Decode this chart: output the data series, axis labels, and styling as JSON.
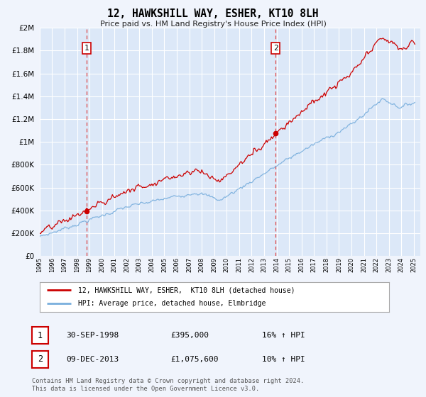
{
  "title": "12, HAWKSHILL WAY, ESHER, KT10 8LH",
  "subtitle": "Price paid vs. HM Land Registry's House Price Index (HPI)",
  "background_color": "#f0f4fc",
  "plot_bg_color": "#dce8f8",
  "grid_color": "#ffffff",
  "sale1_x": 1998.75,
  "sale1_y": 395000,
  "sale2_x": 2013.917,
  "sale2_y": 1075600,
  "red_line_color": "#cc0000",
  "blue_line_color": "#7aafdd",
  "sale_marker_color": "#cc0000",
  "dashed_line_color": "#dd4444",
  "annotation_box_color": "#ffffff",
  "annotation_border_color": "#cc0000",
  "ylim": [
    0,
    2000000
  ],
  "yticks": [
    0,
    200000,
    400000,
    600000,
    800000,
    1000000,
    1200000,
    1400000,
    1600000,
    1800000,
    2000000
  ],
  "xlim_start": 1995.0,
  "xlim_end": 2025.5,
  "legend_label_red": "12, HAWKSHILL WAY, ESHER,  KT10 8LH (detached house)",
  "legend_label_blue": "HPI: Average price, detached house, Elmbridge",
  "footer_text": "Contains HM Land Registry data © Crown copyright and database right 2024.\nThis data is licensed under the Open Government Licence v3.0.",
  "table_rows": [
    {
      "num": "1",
      "date": "30-SEP-1998",
      "price": "£395,000",
      "hpi": "16% ↑ HPI"
    },
    {
      "num": "2",
      "date": "09-DEC-2013",
      "price": "£1,075,600",
      "hpi": "10% ↑ HPI"
    }
  ]
}
